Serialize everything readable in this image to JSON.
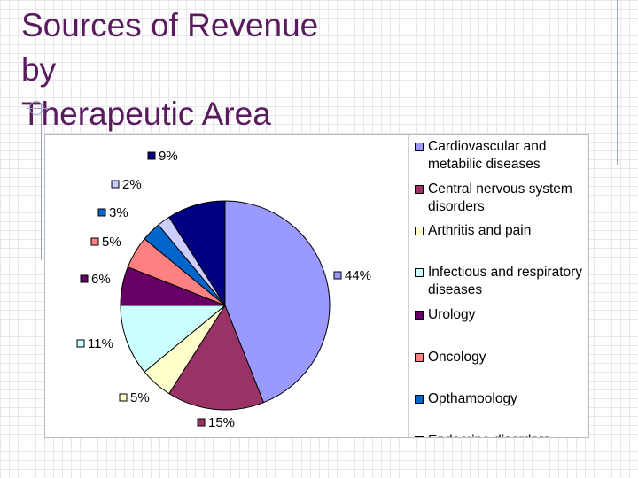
{
  "slide": {
    "title_lines": [
      "Sources of Revenue",
      "by",
      "Therapeutic Area"
    ]
  },
  "chart_data": {
    "type": "pie",
    "start_angle_deg": 0,
    "direction": "clockwise",
    "slices": [
      {
        "label": "Cardiovascular and metabilic diseases",
        "value": 44,
        "display": "44%",
        "color": "#9999ff"
      },
      {
        "label": "Central nervous system disorders",
        "value": 15,
        "display": "15%",
        "color": "#993366"
      },
      {
        "label": "Arthritis and pain",
        "value": 5,
        "display": "5%",
        "color": "#ffffcc"
      },
      {
        "label": "Infectious and respiratory diseases",
        "value": 11,
        "display": "11%",
        "color": "#ccffff"
      },
      {
        "label": "Urology",
        "value": 6,
        "display": "6%",
        "color": "#660066"
      },
      {
        "label": "Oncology",
        "value": 5,
        "display": "5%",
        "color": "#ff8080"
      },
      {
        "label": "Opthamoology",
        "value": 3,
        "display": "3%",
        "color": "#0066cc"
      },
      {
        "label": "",
        "value": 2,
        "display": "2%",
        "color": "#ccccff"
      },
      {
        "label": "",
        "value": 9,
        "display": "9%",
        "color": "#000080"
      }
    ],
    "legend": {
      "position": "right",
      "items": [
        {
          "label": "Cardiovascular and metabilic diseases",
          "color": "#9999ff"
        },
        {
          "label": "Central nervous system disorders",
          "color": "#993366"
        },
        {
          "label": "Arthritis and pain",
          "color": "#ffffcc"
        },
        {
          "label": "Infectious and respiratory diseases",
          "color": "#ccffff"
        },
        {
          "label": "Urology",
          "color": "#660066"
        },
        {
          "label": "Oncology",
          "color": "#ff8080"
        },
        {
          "label": "Opthamoology",
          "color": "#0066cc"
        },
        {
          "label": "Endocrine disorders",
          "color": "#ccccff",
          "partially_visible": true
        }
      ]
    }
  }
}
